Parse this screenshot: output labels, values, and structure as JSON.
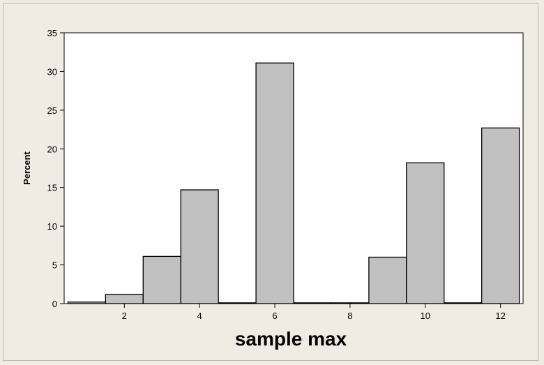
{
  "chart_data": {
    "type": "bar",
    "xlabel": "sample max",
    "ylabel": "Percent",
    "xlim": [
      0.4,
      12.6
    ],
    "ylim": [
      0,
      35
    ],
    "x_ticks": [
      2,
      4,
      6,
      8,
      10,
      12
    ],
    "y_ticks": [
      0,
      5,
      10,
      15,
      20,
      25,
      30,
      35
    ],
    "bin_width": 1,
    "bins": [
      {
        "x": 1,
        "value": 0.2
      },
      {
        "x": 2,
        "value": 1.2
      },
      {
        "x": 3,
        "value": 6.1
      },
      {
        "x": 4,
        "value": 14.7
      },
      {
        "x": 5,
        "value": 0.1
      },
      {
        "x": 6,
        "value": 31.1
      },
      {
        "x": 7,
        "value": 0.1
      },
      {
        "x": 8,
        "value": 0.1
      },
      {
        "x": 9,
        "value": 6.0
      },
      {
        "x": 10,
        "value": 18.2
      },
      {
        "x": 11,
        "value": 0.1
      },
      {
        "x": 12,
        "value": 22.7
      }
    ],
    "bar_color": "#c0c0c0",
    "bar_edge_color": "#000000",
    "plot_background": "#ffffff",
    "figure_background": "#f0ece4",
    "grid": false
  }
}
